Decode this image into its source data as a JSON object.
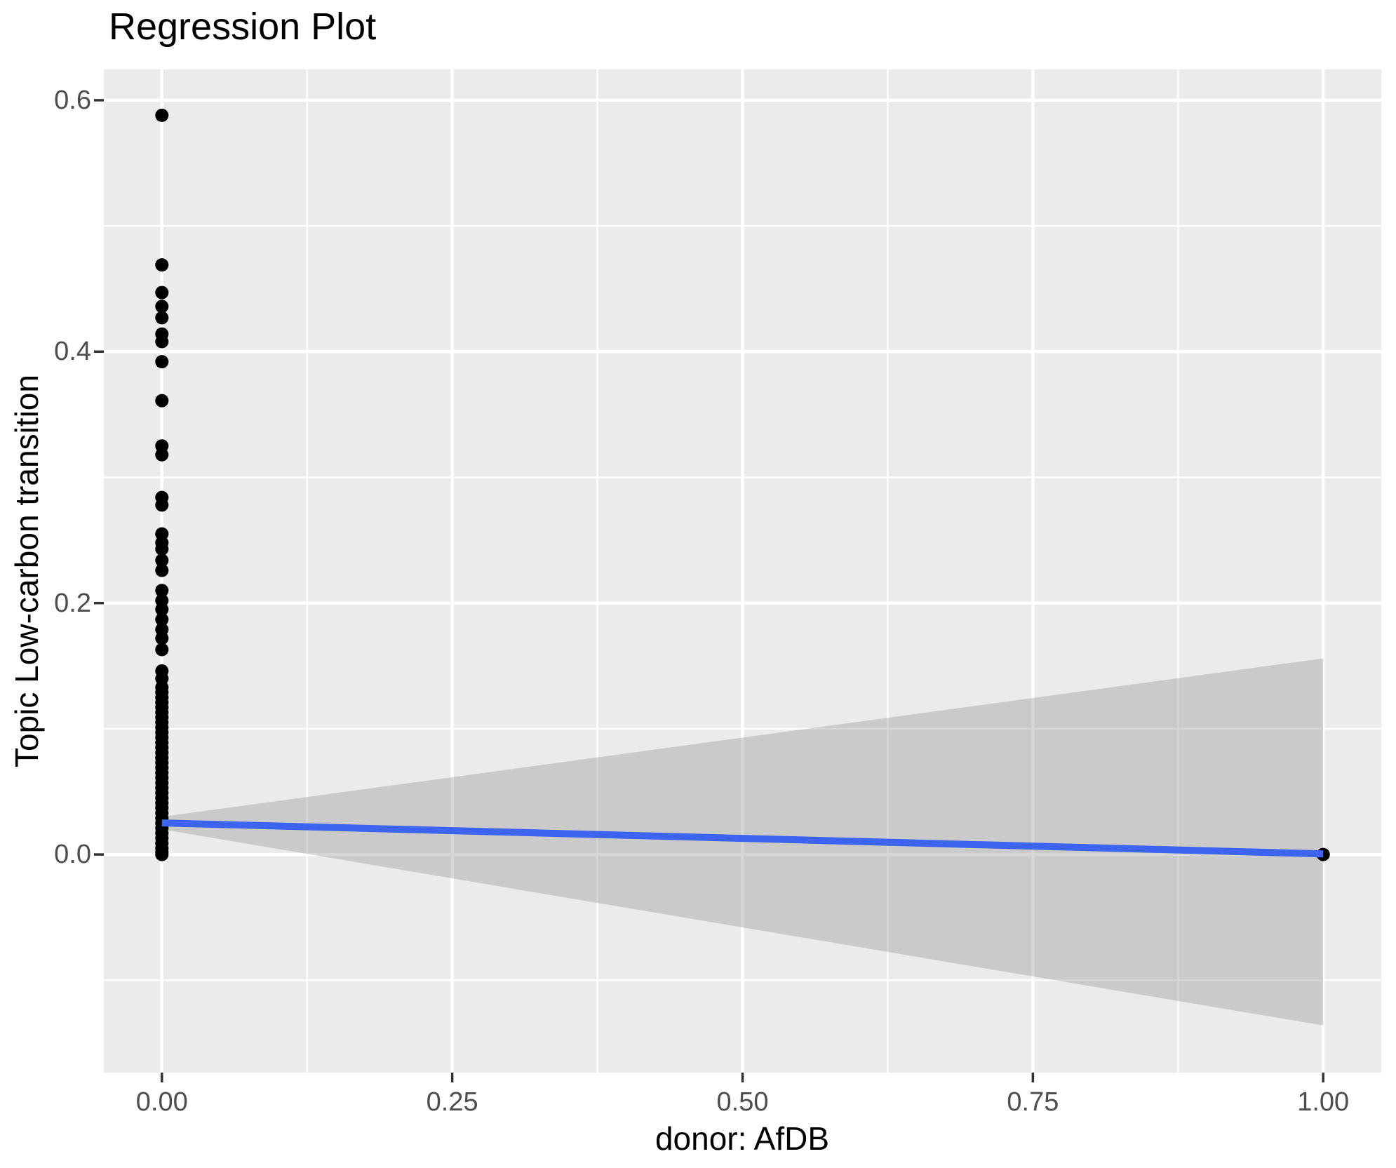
{
  "figure": {
    "title": "Regression Plot",
    "x_axis_title": "donor: AfDB",
    "y_axis_title": "Topic Low-carbon transition"
  },
  "chart_data": {
    "type": "scatter",
    "title": "Regression Plot",
    "xlabel": "donor: AfDB",
    "ylabel": "Topic Low-carbon transition",
    "xlim": [
      -0.05,
      1.05
    ],
    "ylim": [
      -0.1735,
      0.6245
    ],
    "grid": true,
    "legend": "none",
    "x_ticks": {
      "major": [
        0,
        0.25,
        0.5,
        0.75,
        1.0
      ],
      "labels": [
        "0.00",
        "0.25",
        "0.50",
        "0.75",
        "1.00"
      ],
      "minor": [
        0.125,
        0.375,
        0.625,
        0.875
      ]
    },
    "y_ticks": {
      "major": [
        0.0,
        0.2,
        0.4,
        0.6
      ],
      "labels": [
        "0.0",
        "0.2",
        "0.4",
        "0.6"
      ],
      "minor": [
        -0.1,
        0.1,
        0.3,
        0.5
      ]
    },
    "points": {
      "x0_y_values": [
        0.588,
        0.469,
        0.447,
        0.436,
        0.427,
        0.414,
        0.408,
        0.392,
        0.361,
        0.325,
        0.318,
        0.284,
        0.278,
        0.255,
        0.248,
        0.243,
        0.234,
        0.226,
        0.21,
        0.202,
        0.195,
        0.187,
        0.179,
        0.172,
        0.163,
        0.146,
        0.14,
        0.133,
        0.129,
        0.125,
        0.121,
        0.117,
        0.113,
        0.109,
        0.105,
        0.101,
        0.097,
        0.093,
        0.089,
        0.085,
        0.081,
        0.077,
        0.073,
        0.069,
        0.065,
        0.061,
        0.057,
        0.053,
        0.049,
        0.045,
        0.041,
        0.037,
        0.033,
        0.029,
        0.025,
        0.021,
        0.017,
        0.013,
        0.009,
        0.005,
        0.002,
        0.0
      ],
      "extra_points": [
        [
          1.0,
          0.0
        ]
      ]
    },
    "regression_line": {
      "x": [
        0,
        1
      ],
      "y": [
        0.0251,
        0.0005
      ]
    },
    "confidence_band": {
      "x": [
        0,
        1
      ],
      "upper": [
        0.03,
        0.156
      ],
      "lower": [
        0.02,
        -0.136
      ]
    },
    "style": {
      "panel_bg": "#EBEBEB",
      "grid_color": "#FFFFFF",
      "point_color": "#000000",
      "line_color": "#3C64F0",
      "band_color": "rgba(153,153,153,0.40)",
      "tick_label_color": "#4D4D4D",
      "tick_mark_color": "#333333",
      "title_color": "#000000"
    }
  }
}
